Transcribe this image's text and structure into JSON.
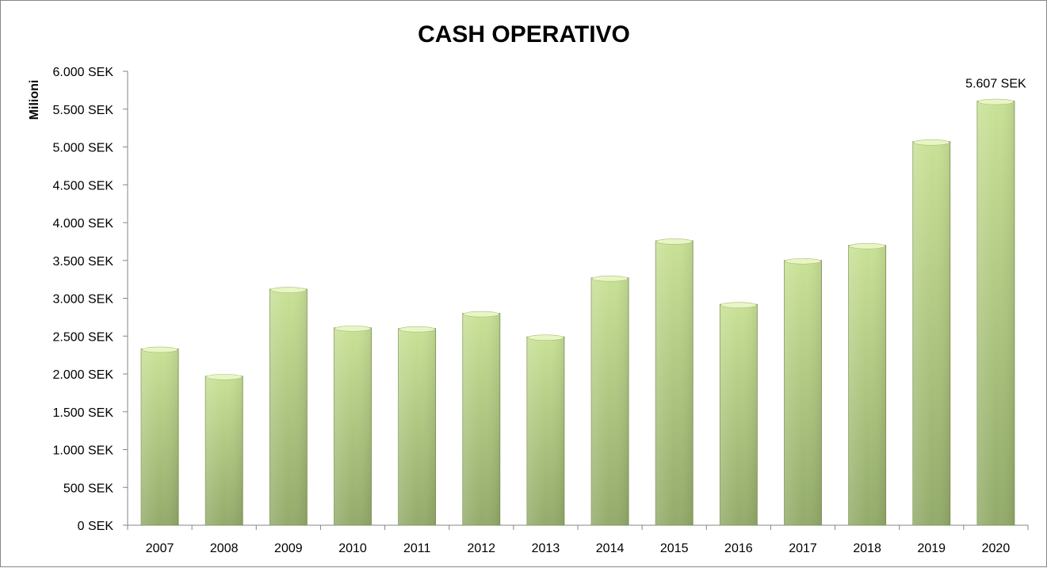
{
  "chart_data": {
    "type": "bar",
    "title": "CASH OPERATIVO",
    "ylabel": "Milioni",
    "xlabel": "",
    "categories": [
      "2007",
      "2008",
      "2009",
      "2010",
      "2011",
      "2012",
      "2013",
      "2014",
      "2015",
      "2016",
      "2017",
      "2018",
      "2019",
      "2020"
    ],
    "values": [
      2330,
      1970,
      3120,
      2610,
      2600,
      2800,
      2490,
      3270,
      3760,
      2920,
      3500,
      3700,
      5070,
      5607
    ],
    "ylim": [
      0,
      6000
    ],
    "yticks": [
      0,
      500,
      1000,
      1500,
      2000,
      2500,
      3000,
      3500,
      4000,
      4500,
      5000,
      5500,
      6000
    ],
    "ytick_labels": [
      "0 SEK",
      "500 SEK",
      "1.000 SEK",
      "1.500 SEK",
      "2.000 SEK",
      "2.500 SEK",
      "3.000 SEK",
      "3.500 SEK",
      "4.000 SEK",
      "4.500 SEK",
      "5.000 SEK",
      "5.500 SEK",
      "6.000 SEK"
    ],
    "annotations": [
      {
        "category": "2020",
        "label": "5.607 SEK"
      }
    ],
    "grid": false,
    "legend": "none",
    "colors": {
      "bar_top": "#c6df8f",
      "bar_bottom": "#93ab6a",
      "bar_edge": "#7d9454",
      "axis": "#868686"
    }
  }
}
